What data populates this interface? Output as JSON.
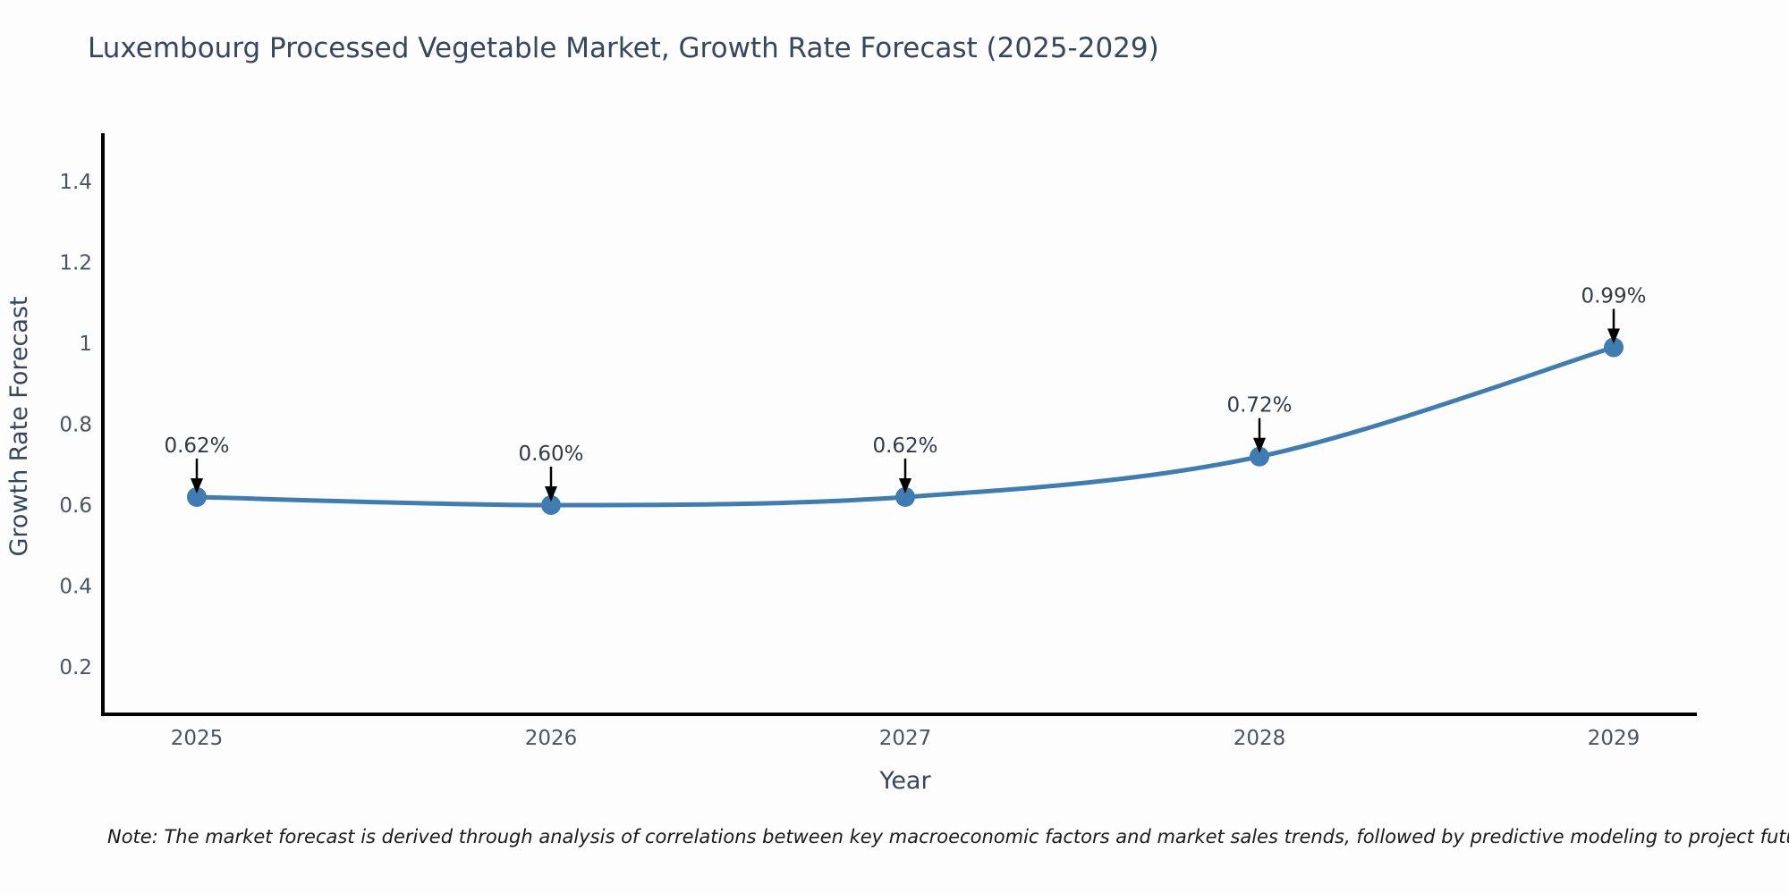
{
  "note": {
    "text": "Note: The market forecast is derived through analysis of correlations between key macroeconomic factors and market sales trends, followed by predictive modeling to project future sales."
  },
  "chart_data": {
    "type": "line",
    "title": "Luxembourg Processed Vegetable Market, Growth Rate Forecast (2025-2029)",
    "xlabel": "Year",
    "ylabel": "Growth Rate Forecast",
    "x": [
      2025,
      2026,
      2027,
      2028,
      2029
    ],
    "xtick_labels": [
      "2025",
      "2026",
      "2027",
      "2028",
      "2029"
    ],
    "values": [
      0.62,
      0.6,
      0.62,
      0.72,
      0.99
    ],
    "point_labels": [
      "0.62%",
      "0.60%",
      "0.62%",
      "0.72%",
      "0.99%"
    ],
    "yticks": [
      0.2,
      0.4,
      0.6,
      0.8,
      1.0,
      1.2,
      1.4
    ],
    "ytick_labels": [
      "0.2",
      "0.4",
      "0.6",
      "0.8",
      "1",
      "1.2",
      "1.4"
    ],
    "ylim": [
      0.08,
      1.52
    ],
    "line_shape": "spline",
    "grid": false,
    "legend": "none",
    "colors": {
      "line": "#3e7cb2",
      "marker": "#3e7cb2",
      "axis": "#000000",
      "annotation_text": "#333a44",
      "annotation_arrow": "#000000",
      "tick_label": "#4a5460",
      "axis_label": "#35465e",
      "title": "#35465e",
      "background": "#fdfdfd"
    }
  }
}
